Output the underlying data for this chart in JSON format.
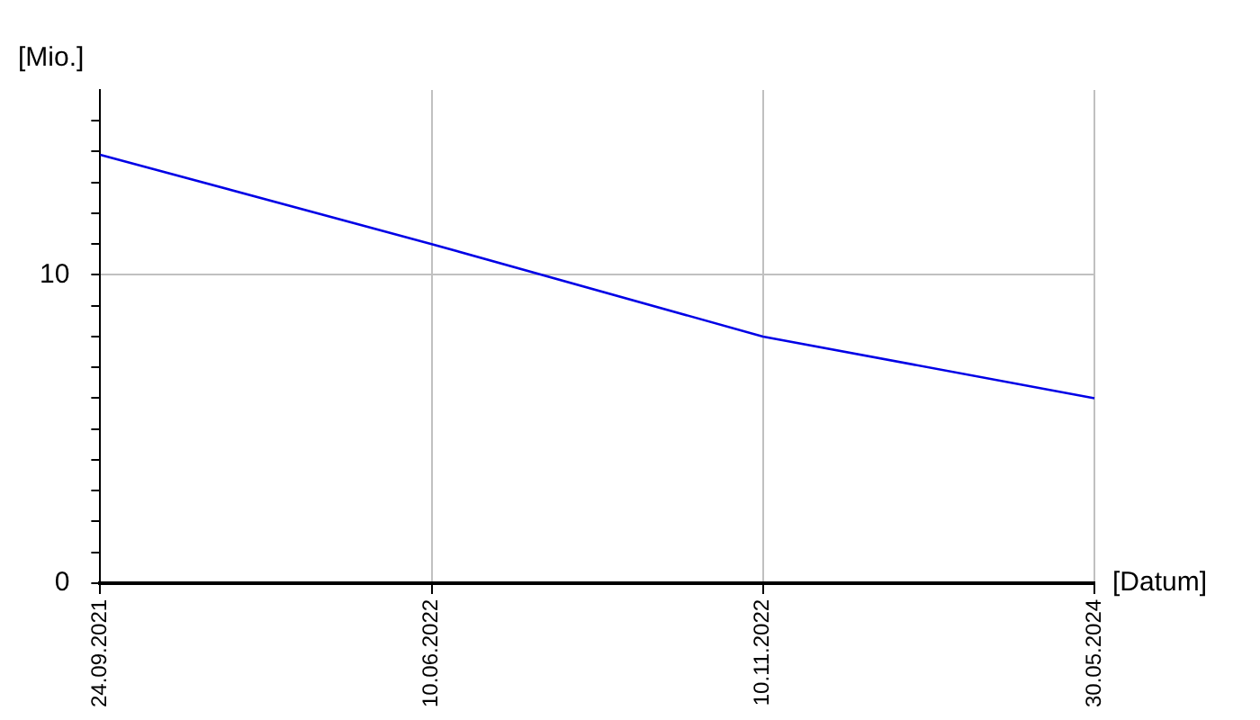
{
  "chart_data": {
    "type": "line",
    "xlabel": "[Datum]",
    "ylabel": "[Mio.]",
    "categories": [
      "24.09.2021",
      "10.06.2022",
      "10.11.2022",
      "30.05.2024"
    ],
    "series": [
      {
        "color": "#0000e6",
        "values": [
          13.9,
          11,
          8,
          6
        ]
      }
    ],
    "ylim": [
      0,
      16
    ],
    "yticks": [
      0,
      {
        "value": 1,
        "label": null
      },
      {
        "value": 2,
        "label": null
      },
      {
        "value": 3,
        "label": null
      },
      {
        "value": 4,
        "label": null
      },
      {
        "value": 5,
        "label": null
      },
      {
        "value": 6,
        "label": null
      },
      {
        "value": 7,
        "label": null
      },
      {
        "value": 8,
        "label": null
      },
      {
        "value": 9,
        "label": null
      },
      10,
      {
        "value": 11,
        "label": null
      },
      {
        "value": 12,
        "label": null
      },
      {
        "value": 13,
        "label": null
      },
      {
        "value": 14,
        "label": null
      },
      {
        "value": 15,
        "label": null
      }
    ],
    "grid": true,
    "legend": false,
    "marker": "none",
    "line_style": "solid"
  }
}
